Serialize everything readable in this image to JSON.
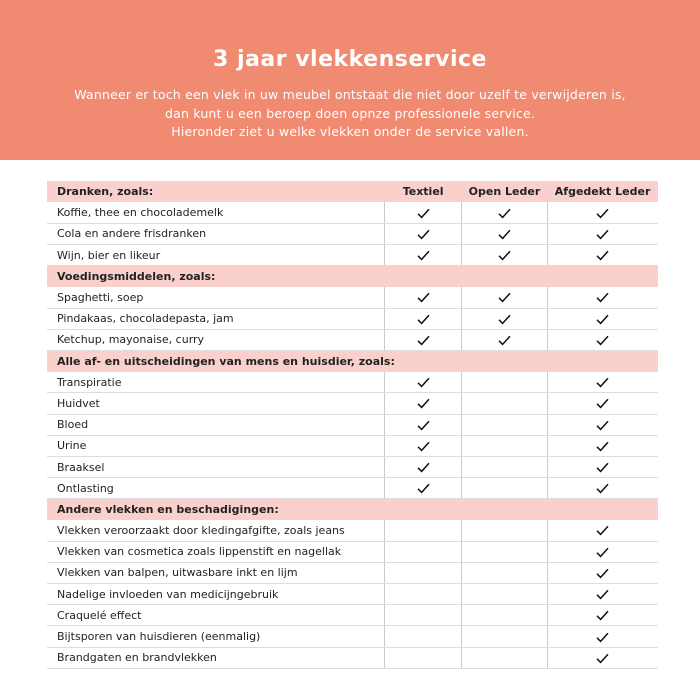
{
  "banner": {
    "title": "3 jaar vlekkenservice",
    "intro": [
      "Wanneer er toch een vlek in uw meubel ontstaat die niet door uzelf te verwijderen is,",
      "dan kunt u een beroep doen opnze professionele service.",
      "Hieronder ziet u welke vlekken onder de service vallen."
    ],
    "color": "#F08A70"
  },
  "table": {
    "header_color": "#F9D0CB",
    "columns": [
      "Textiel",
      "Open Leder",
      "Afgedekt Leder"
    ],
    "sections": [
      {
        "title": "Dranken, zoals:",
        "rows": [
          {
            "label": "Koffie, thee en chocolademelk",
            "checks": [
              true,
              true,
              true
            ]
          },
          {
            "label": "Cola en andere frisdranken",
            "checks": [
              true,
              true,
              true
            ]
          },
          {
            "label": "Wijn, bier en likeur",
            "checks": [
              true,
              true,
              true
            ]
          }
        ]
      },
      {
        "title": "Voedingsmiddelen, zoals:",
        "rows": [
          {
            "label": "Spaghetti, soep",
            "checks": [
              true,
              true,
              true
            ]
          },
          {
            "label": "Pindakaas, chocoladepasta, jam",
            "checks": [
              true,
              true,
              true
            ]
          },
          {
            "label": "Ketchup, mayonaise, curry",
            "checks": [
              true,
              true,
              true
            ]
          }
        ]
      },
      {
        "title": "Alle af- en uitscheidingen van mens en huisdier, zoals:",
        "rows": [
          {
            "label": "Transpiratie",
            "checks": [
              true,
              false,
              true
            ]
          },
          {
            "label": "Huidvet",
            "checks": [
              true,
              false,
              true
            ]
          },
          {
            "label": "Bloed",
            "checks": [
              true,
              false,
              true
            ]
          },
          {
            "label": "Urine",
            "checks": [
              true,
              false,
              true
            ]
          },
          {
            "label": "Braaksel",
            "checks": [
              true,
              false,
              true
            ]
          },
          {
            "label": "Ontlasting",
            "checks": [
              true,
              false,
              true
            ]
          }
        ]
      },
      {
        "title": "Andere vlekken en beschadigingen:",
        "rows": [
          {
            "label": "Vlekken veroorzaakt door kledingafgifte, zoals jeans",
            "checks": [
              false,
              false,
              true
            ]
          },
          {
            "label": "Vlekken van cosmetica zoals lippenstift en nagellak",
            "checks": [
              false,
              false,
              true
            ]
          },
          {
            "label": "Vlekken van balpen, uitwasbare inkt en lijm",
            "checks": [
              false,
              false,
              true
            ]
          },
          {
            "label": "Nadelige invloeden van medicijngebruik",
            "checks": [
              false,
              false,
              true
            ]
          },
          {
            "label": "Craquelé effect",
            "checks": [
              false,
              false,
              true
            ]
          },
          {
            "label": "Bijtsporen van huisdieren (eenmalig)",
            "checks": [
              false,
              false,
              true
            ]
          },
          {
            "label": "Brandgaten en brandvlekken",
            "checks": [
              false,
              false,
              true
            ]
          }
        ]
      }
    ]
  }
}
